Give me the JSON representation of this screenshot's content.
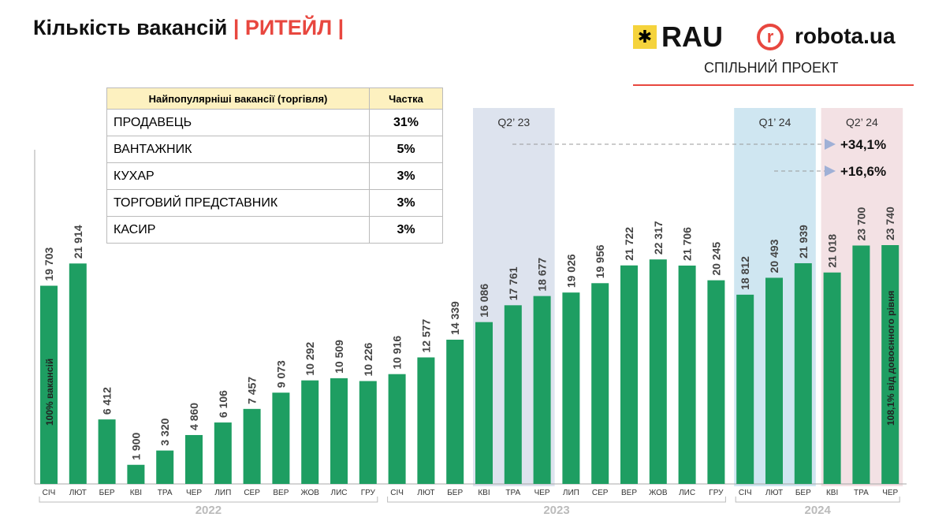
{
  "title": {
    "main": "Кількість вакансій",
    "sector": "| РИТЕЙЛ |"
  },
  "logos": {
    "rau": "RAU",
    "robota": "robota.ua",
    "joint": "СПІЛЬНИЙ ПРОЕКТ"
  },
  "table": {
    "headers": [
      "Найпопулярніші вакансії (торгівля)",
      "Частка"
    ],
    "rows": [
      [
        "ПРОДАВЕЦЬ",
        "31%"
      ],
      [
        "ВАНТАЖНИК",
        "5%"
      ],
      [
        "КУХАР",
        "3%"
      ],
      [
        "ТОРГОВИЙ ПРЕДСТАВНИК",
        "3%"
      ],
      [
        "КАСИР",
        "3%"
      ]
    ]
  },
  "chart_data": {
    "type": "bar",
    "categories": [
      "СІЧ",
      "ЛЮТ",
      "БЕР",
      "КВІ",
      "ТРА",
      "ЧЕР",
      "ЛИП",
      "СЕР",
      "ВЕР",
      "ЖОВ",
      "ЛИС",
      "ГРУ",
      "СІЧ",
      "ЛЮТ",
      "БЕР",
      "КВІ",
      "ТРА",
      "ЧЕР",
      "ЛИП",
      "СЕР",
      "ВЕР",
      "ЖОВ",
      "ЛИС",
      "ГРУ",
      "СІЧ",
      "ЛЮТ",
      "БЕР",
      "КВІ",
      "ТРА",
      "ЧЕР"
    ],
    "values": [
      19703,
      21914,
      6412,
      1900,
      3320,
      4860,
      6106,
      7457,
      9073,
      10292,
      10509,
      10226,
      10916,
      12577,
      14339,
      16086,
      17761,
      18677,
      19026,
      19956,
      21722,
      22317,
      21706,
      20245,
      18812,
      20493,
      21939,
      21018,
      23700,
      23740
    ],
    "value_labels": [
      "19 703",
      "21 914",
      "6 412",
      "1 900",
      "3 320",
      "4 860",
      "6 106",
      "7 457",
      "9 073",
      "10 292",
      "10 509",
      "10 226",
      "10 916",
      "12 577",
      "14 339",
      "16 086",
      "17 761",
      "18 677",
      "19 026",
      "19 956",
      "21 722",
      "22 317",
      "21 706",
      "20 245",
      "18 812",
      "20 493",
      "21 939",
      "21 018",
      "23 700",
      "23 740"
    ],
    "years": [
      {
        "label": "2022",
        "from": 0,
        "to": 11
      },
      {
        "label": "2023",
        "from": 12,
        "to": 23
      },
      {
        "label": "2024",
        "from": 24,
        "to": 29
      }
    ],
    "highlights": [
      {
        "label": "Q2’ 23",
        "from": 15,
        "to": 17,
        "color": "#dde3ee"
      },
      {
        "label": "Q1’ 24",
        "from": 24,
        "to": 26,
        "color": "#cfe6f1"
      },
      {
        "label": "Q2’ 24",
        "from": 27,
        "to": 29,
        "color": "#f3e1e4"
      }
    ],
    "annotations": {
      "first_bar": "100% вакансій",
      "last_bar": "108,1% від довоєнного рівня",
      "growth": [
        "+34,1%",
        "+16,6%"
      ]
    },
    "bar_color": "#1e9e62",
    "ylim": [
      0,
      24000
    ]
  }
}
